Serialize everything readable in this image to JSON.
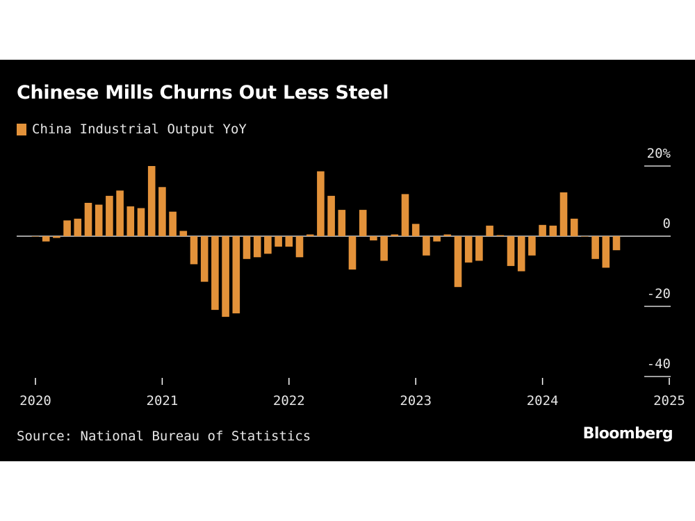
{
  "chart_data": {
    "type": "bar",
    "title": "Chinese Mills Churns Out Less Steel",
    "legend": "China Industrial Output YoY",
    "source": "Source: National Bureau of Statistics",
    "brand": "Bloomberg",
    "bar_color": "#e3923a",
    "start": "2020-01",
    "x_tick_labels": [
      "2020",
      "2021",
      "2022",
      "2023",
      "2024",
      "2025"
    ],
    "y_ticks": [
      20,
      0,
      -20,
      -40
    ],
    "y_tick_labels": [
      "20%",
      "0",
      "-20",
      "-40"
    ],
    "ylim": [
      -40,
      20
    ],
    "values": [
      0,
      -1.5,
      -0.5,
      4.5,
      5,
      9.5,
      9,
      11.5,
      13,
      8.5,
      8,
      20,
      14,
      7,
      1.5,
      -8,
      -13,
      -21,
      -23,
      -22,
      -6.5,
      -6,
      -5,
      -3,
      -3,
      -6,
      0.5,
      18.5,
      11.5,
      7.5,
      -9.5,
      7.5,
      -1.2,
      -7,
      0.5,
      12,
      3.5,
      -5.5,
      -1.5,
      0.5,
      -14.5,
      -7.5,
      -7,
      3,
      0.3,
      -8.5,
      -10,
      -5.5,
      3.2,
      3,
      12.5,
      5,
      0,
      -6.5,
      -9,
      -4
    ]
  }
}
